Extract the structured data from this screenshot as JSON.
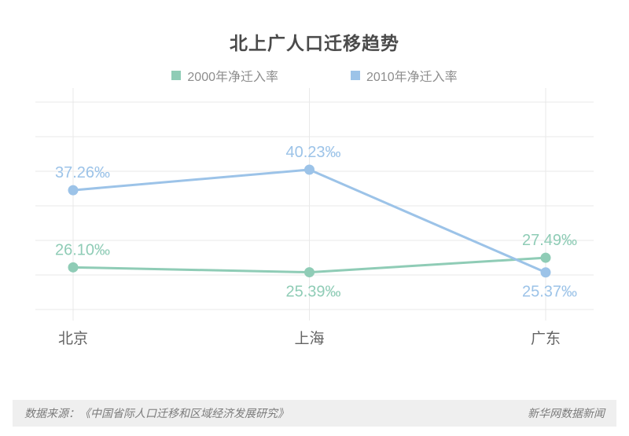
{
  "chart_data": {
    "type": "line",
    "title": "北上广人口迁移趋势",
    "categories": [
      "北京",
      "上海",
      "广东"
    ],
    "series": [
      {
        "name": "2000年净迁入率",
        "color": "#8fccb6",
        "values": [
          26.1,
          25.39,
          27.49
        ],
        "labels": [
          "26.10‰",
          "25.39‰",
          "27.49‰"
        ],
        "label_placement": [
          "above",
          "below",
          "above"
        ]
      },
      {
        "name": "2010年净迁入率",
        "color": "#9cc3e8",
        "values": [
          37.26,
          40.23,
          25.37
        ],
        "labels": [
          "37.26‰",
          "40.23‰",
          "25.37‰"
        ],
        "label_placement": [
          "above",
          "above",
          "below"
        ]
      }
    ],
    "unit": "‰",
    "ylim": [
      20,
      50
    ],
    "y_gridline_step": 5,
    "grid": true,
    "legend_position": "top",
    "xlabel": "",
    "ylabel": ""
  },
  "footer": {
    "source": "数据来源：《中国省际人口迁移和区域经济发展研究》",
    "publisher": "新华网数据新闻"
  }
}
